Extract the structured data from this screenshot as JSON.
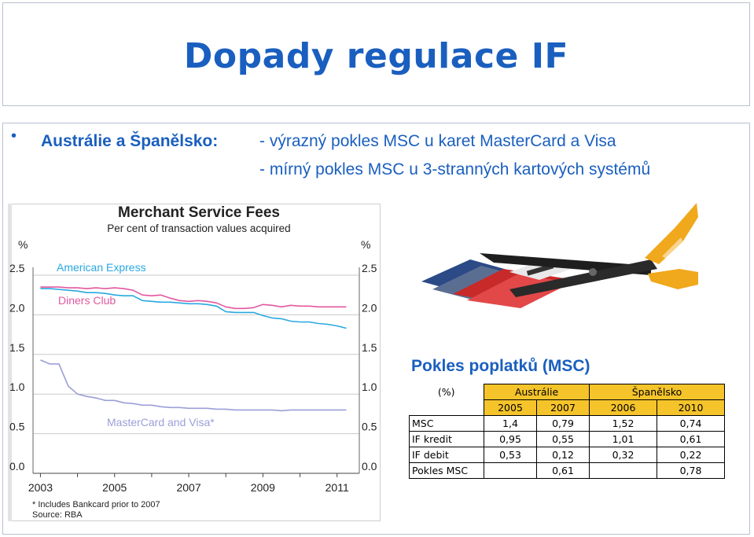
{
  "title": "Dopady regulace IF",
  "bullet": {
    "label": "Austrálie a Španělsko:",
    "lines": [
      "- výrazný pokles MSC u karet MasterCard a Visa",
      "- mírný pokles MSC u 3-stranných kartových systémů"
    ]
  },
  "chart_data": {
    "type": "line",
    "title": "Merchant Service Fees",
    "subtitle": "Per cent of transaction values acquired",
    "ylabel_left": "%",
    "ylabel_right": "%",
    "ylim": [
      0,
      2.5
    ],
    "yticks": [
      "2.5",
      "2.0",
      "1.5",
      "1.0",
      "0.5",
      "0.0"
    ],
    "xlim": [
      2002.8,
      2011.6
    ],
    "xticks": [
      "2003",
      "2005",
      "2007",
      "2009",
      "2011"
    ],
    "grid": true,
    "footnote": "*  Includes Bankcard prior to 2007",
    "source": "Source: RBA",
    "series": [
      {
        "name": "American Express",
        "color": "#29a8e0",
        "x": [
          2003.0,
          2003.25,
          2003.5,
          2003.75,
          2004.0,
          2004.25,
          2004.5,
          2004.75,
          2005.0,
          2005.25,
          2005.5,
          2005.75,
          2006.0,
          2006.25,
          2006.5,
          2006.75,
          2007.0,
          2007.25,
          2007.5,
          2007.75,
          2008.0,
          2008.25,
          2008.5,
          2008.75,
          2009.0,
          2009.25,
          2009.5,
          2009.75,
          2010.0,
          2010.25,
          2010.5,
          2010.75,
          2011.0,
          2011.25
        ],
        "values": [
          2.33,
          2.33,
          2.32,
          2.31,
          2.3,
          2.28,
          2.28,
          2.27,
          2.25,
          2.24,
          2.24,
          2.18,
          2.17,
          2.16,
          2.16,
          2.15,
          2.14,
          2.14,
          2.13,
          2.11,
          2.04,
          2.03,
          2.03,
          2.03,
          1.99,
          1.96,
          1.95,
          1.92,
          1.91,
          1.91,
          1.89,
          1.88,
          1.86,
          1.83
        ]
      },
      {
        "name": "Diners Club",
        "color": "#e2589e",
        "x": [
          2003.0,
          2003.25,
          2003.5,
          2003.75,
          2004.0,
          2004.25,
          2004.5,
          2004.75,
          2005.0,
          2005.25,
          2005.5,
          2005.75,
          2006.0,
          2006.25,
          2006.5,
          2006.75,
          2007.0,
          2007.25,
          2007.5,
          2007.75,
          2008.0,
          2008.25,
          2008.5,
          2008.75,
          2009.0,
          2009.25,
          2009.5,
          2009.75,
          2010.0,
          2010.25,
          2010.5,
          2010.75,
          2011.0,
          2011.25
        ],
        "values": [
          2.35,
          2.35,
          2.35,
          2.34,
          2.34,
          2.33,
          2.34,
          2.33,
          2.34,
          2.33,
          2.31,
          2.25,
          2.24,
          2.25,
          2.21,
          2.18,
          2.17,
          2.18,
          2.17,
          2.15,
          2.1,
          2.08,
          2.08,
          2.09,
          2.13,
          2.12,
          2.1,
          2.12,
          2.11,
          2.11,
          2.1,
          2.1,
          2.1,
          2.1
        ]
      },
      {
        "name": "MasterCard and Visa*",
        "color": "#9b9fd8",
        "x": [
          2003.0,
          2003.25,
          2003.5,
          2003.75,
          2004.0,
          2004.25,
          2004.5,
          2004.75,
          2005.0,
          2005.25,
          2005.5,
          2005.75,
          2006.0,
          2006.25,
          2006.5,
          2006.75,
          2007.0,
          2007.25,
          2007.5,
          2007.75,
          2008.0,
          2008.25,
          2008.5,
          2008.75,
          2009.0,
          2009.25,
          2009.5,
          2009.75,
          2010.0,
          2010.25,
          2010.5,
          2010.75,
          2011.0,
          2011.25
        ],
        "values": [
          1.43,
          1.38,
          1.38,
          1.1,
          1.0,
          0.97,
          0.95,
          0.92,
          0.92,
          0.89,
          0.88,
          0.86,
          0.86,
          0.84,
          0.83,
          0.83,
          0.82,
          0.82,
          0.82,
          0.81,
          0.81,
          0.8,
          0.8,
          0.8,
          0.8,
          0.8,
          0.79,
          0.8,
          0.8,
          0.8,
          0.8,
          0.8,
          0.8,
          0.8
        ]
      }
    ]
  },
  "msc_table": {
    "heading": "Pokles poplatků  (MSC)",
    "unit": "(%)",
    "country_1": "Austrálie",
    "country_2": "Španělsko",
    "years": [
      "2005",
      "2007",
      "2006",
      "2010"
    ],
    "rows": [
      {
        "label": "MSC",
        "values": [
          "1,4",
          "0,79",
          "1,52",
          "0,74"
        ]
      },
      {
        "label": "IF kredit",
        "values": [
          "0,95",
          "0,55",
          "1,01",
          "0,61"
        ]
      },
      {
        "label": "IF debit",
        "values": [
          "0,53",
          "0,12",
          "0,32",
          "0,22"
        ]
      },
      {
        "label": "Pokles MSC",
        "values": [
          "",
          "0,61",
          "",
          "0,78"
        ]
      }
    ]
  },
  "image": {
    "icon": "scissors-cutting-cards-icon"
  }
}
